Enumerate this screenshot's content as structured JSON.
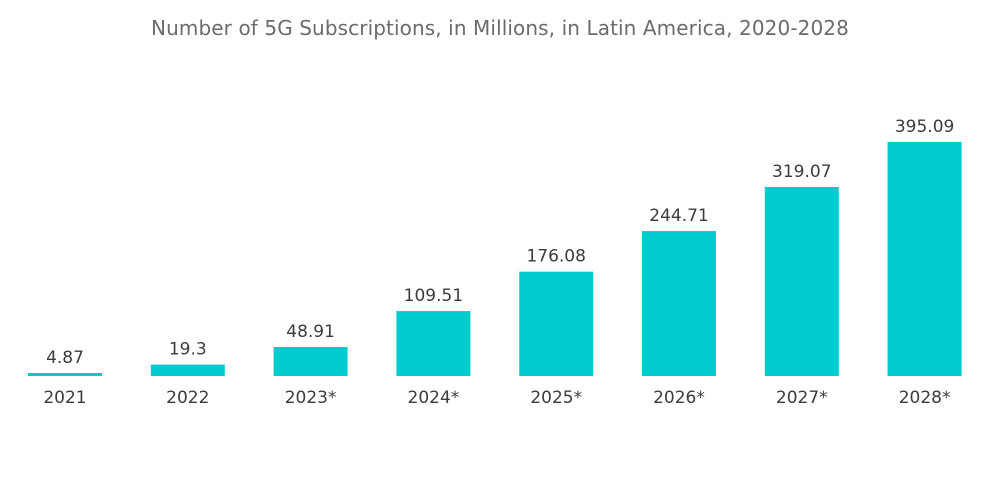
{
  "chart_data": {
    "type": "bar",
    "title": "Number of 5G Subscriptions, in Millions, in Latin America, 2020-2028",
    "xlabel": "",
    "ylabel": "",
    "categories": [
      "2021",
      "2022",
      "2023*",
      "2024*",
      "2025*",
      "2026*",
      "2027*",
      "2028*"
    ],
    "values": [
      4.87,
      19.3,
      48.91,
      109.51,
      176.08,
      244.71,
      319.07,
      395.09
    ],
    "value_labels": [
      "4.87",
      "19.3",
      "48.91",
      "109.51",
      "176.08",
      "244.71",
      "319.07",
      "395.09"
    ],
    "ylim": [
      0,
      395.09
    ],
    "grid": false,
    "legend": "none",
    "bar_color": "#00ccd0"
  }
}
